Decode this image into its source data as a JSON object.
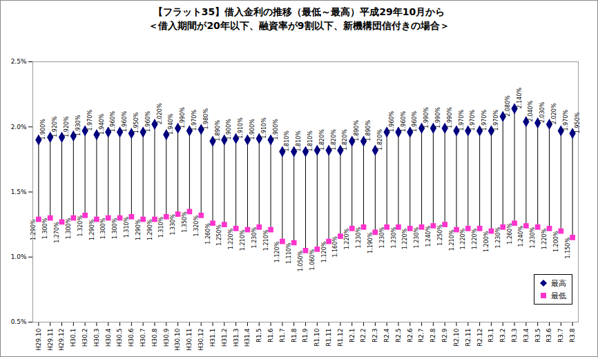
{
  "chart_data": {
    "type": "hilo",
    "title": "【フラット35】借入金利の推移（最低～最高）平成29年10月から",
    "subtitle": "＜借入期間が20年以下、融資率が9割以下、新機構団信付きの場合＞",
    "categories": [
      "H29.10",
      "H29.11",
      "H29.12",
      "H30.1",
      "H30.2",
      "H30.3",
      "H30.4",
      "H30.5",
      "H30.6",
      "H30.7",
      "H30.8",
      "H30.9",
      "H30.10",
      "H30.11",
      "H30.12",
      "H31.1",
      "H31.2",
      "H31.3",
      "H31.4",
      "R1.5",
      "R1.6",
      "R1.7",
      "R1.8",
      "R1.9",
      "R1.10",
      "R1.11",
      "R1.12",
      "R2.1",
      "R2.2",
      "R2.3",
      "R2.4",
      "R2.5",
      "R2.6",
      "R2.7",
      "R2.8",
      "R2.9",
      "R2.10",
      "R2.11",
      "R2.12",
      "R3.1",
      "R3.2",
      "R3.3",
      "R3.4",
      "R3.5",
      "R3.6",
      "R3.7",
      "R3.8"
    ],
    "series": [
      {
        "name": "最高",
        "color": "#000080",
        "marker": "diamond",
        "values": [
          1.9,
          1.92,
          1.92,
          1.93,
          1.97,
          1.94,
          1.96,
          1.96,
          1.95,
          1.96,
          2.02,
          1.94,
          1.99,
          1.97,
          1.98,
          1.89,
          1.9,
          1.91,
          1.9,
          1.91,
          1.9,
          1.81,
          1.81,
          1.81,
          1.82,
          1.82,
          1.82,
          1.89,
          1.89,
          1.82,
          1.96,
          1.96,
          1.96,
          1.99,
          1.99,
          1.99,
          1.97,
          1.97,
          1.97,
          1.97,
          2.08,
          2.14,
          2.04,
          2.03,
          2.02,
          1.97,
          1.95
        ],
        "value_labels": [
          "1.900%",
          "1.920%",
          "1.920%",
          "1.930%",
          "1.970%",
          "1.940%",
          "1.960%",
          "1.960%",
          "1.950%",
          "1.960%",
          "2.020%",
          "1.940%",
          "1.990%",
          "1.970%",
          "1.980%",
          "1.890%",
          "1.900%",
          "1.910%",
          "1.900%",
          "1.910%",
          "1.900%",
          "1.810%",
          "1.810%",
          "1.810%",
          "1.820%",
          "1.820%",
          "1.820%",
          "1.890%",
          "1.890%",
          "1.820%",
          "1.960%",
          "1.960%",
          "1.960%",
          "1.990%",
          "1.990%",
          "1.990%",
          "1.970%",
          "1.970%",
          "1.970%",
          "1.970%",
          "2.080%",
          "2.140%",
          "2.040%",
          "2.030%",
          "2.020%",
          "1.970%",
          "1.950%"
        ]
      },
      {
        "name": "最低",
        "color": "#ff33cc",
        "marker": "square",
        "values": [
          1.29,
          1.3,
          1.27,
          1.3,
          1.32,
          1.29,
          1.3,
          1.3,
          1.31,
          1.29,
          1.29,
          1.31,
          1.33,
          1.35,
          1.32,
          1.26,
          1.25,
          1.22,
          1.21,
          1.23,
          1.21,
          1.12,
          1.11,
          1.05,
          1.06,
          1.12,
          1.16,
          1.22,
          1.23,
          1.19,
          1.23,
          1.23,
          1.22,
          1.23,
          1.24,
          1.25,
          1.21,
          1.22,
          1.22,
          1.2,
          1.23,
          1.26,
          1.24,
          1.23,
          1.22,
          1.2,
          1.15
        ],
        "value_labels": [
          "1.290%",
          "1.300%",
          "1.270%",
          "1.300%",
          "1.320%",
          "1.290%",
          "1.300%",
          "1.300%",
          "1.310%",
          "1.290%",
          "1.290%",
          "1.310%",
          "1.330%",
          "1.350%",
          "1.320%",
          "1.260%",
          "1.250%",
          "1.220%",
          "1.210%",
          "1.230%",
          "1.210%",
          "1.120%",
          "1.110%",
          "1.050%",
          "1.060%",
          "1.120%",
          "1.160%",
          "1.220%",
          "1.230%",
          "1.190%",
          "1.230%",
          "1.230%",
          "1.220%",
          "1.230%",
          "1.240%",
          "1.250%",
          "1.210%",
          "1.220%",
          "1.220%",
          "1.200%",
          "1.230%",
          "1.260%",
          "1.240%",
          "1.230%",
          "1.220%",
          "1.200%",
          "1.150%"
        ]
      }
    ],
    "ylim": [
      0.5,
      2.5
    ],
    "yticks": [
      {
        "value": 0.5,
        "label": "0.5%"
      },
      {
        "value": 1.0,
        "label": "1.0%"
      },
      {
        "value": 1.5,
        "label": "1.5%"
      },
      {
        "value": 2.0,
        "label": "2.0%"
      },
      {
        "value": 2.5,
        "label": "2.5%"
      }
    ],
    "grid": false,
    "legend": "right",
    "data_labels": true
  }
}
